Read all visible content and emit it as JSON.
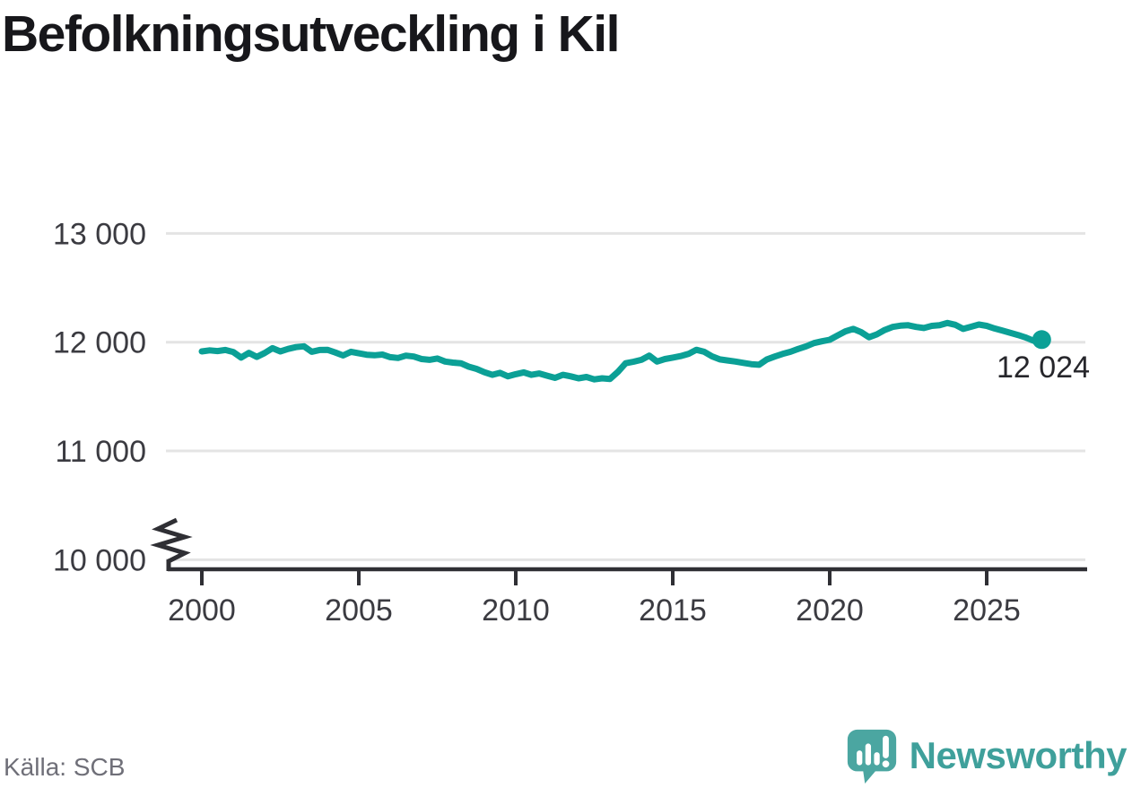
{
  "title": "Befolkningsutveckling i Kil",
  "source": "Källa: SCB",
  "branding": {
    "logo_text": "Newsworthy",
    "logo_icon": "newsworthy-speech-bubble-barchart-icon"
  },
  "colors": {
    "line": "#0BA096",
    "grid": "#e4e4e4",
    "axis": "#2f2f34",
    "tick_label": "#3b3b41",
    "title": "#17171b",
    "end_label": "#26262b",
    "source": "#6f6f78",
    "logo": "#4BA6A1",
    "logo_text": "#3FA09B"
  },
  "chart_data": {
    "type": "line",
    "title": "Befolkningsutveckling i Kil",
    "xlabel": "",
    "ylabel": "",
    "x_tick_labels": [
      "2000",
      "2005",
      "2010",
      "2015",
      "2020",
      "2025"
    ],
    "x_tick_values": [
      2000,
      2005,
      2010,
      2015,
      2020,
      2025
    ],
    "y_tick_labels": [
      "13 000",
      "12 000",
      "11 000",
      "10 000"
    ],
    "y_tick_values": [
      13000,
      12000,
      11000,
      10000
    ],
    "ylim": [
      10000,
      13000
    ],
    "axis_break_at_origin": true,
    "grid": "horizontal",
    "end_label": "12 024",
    "end_value": 12024,
    "series": [
      {
        "name": "Befolkning i Kil",
        "points": [
          [
            2000,
            11915
          ],
          [
            2000.25,
            11925
          ],
          [
            2000.5,
            11918
          ],
          [
            2000.75,
            11928
          ],
          [
            2001,
            11910
          ],
          [
            2001.25,
            11858
          ],
          [
            2001.5,
            11902
          ],
          [
            2001.75,
            11865
          ],
          [
            2002,
            11900
          ],
          [
            2002.25,
            11945
          ],
          [
            2002.5,
            11915
          ],
          [
            2002.75,
            11938
          ],
          [
            2003,
            11955
          ],
          [
            2003.25,
            11962
          ],
          [
            2003.5,
            11912
          ],
          [
            2003.75,
            11928
          ],
          [
            2004,
            11930
          ],
          [
            2004.25,
            11905
          ],
          [
            2004.5,
            11878
          ],
          [
            2004.75,
            11912
          ],
          [
            2005,
            11898
          ],
          [
            2005.25,
            11885
          ],
          [
            2005.5,
            11880
          ],
          [
            2005.75,
            11886
          ],
          [
            2006,
            11862
          ],
          [
            2006.25,
            11855
          ],
          [
            2006.5,
            11876
          ],
          [
            2006.75,
            11868
          ],
          [
            2007,
            11845
          ],
          [
            2007.25,
            11838
          ],
          [
            2007.5,
            11850
          ],
          [
            2007.75,
            11822
          ],
          [
            2008,
            11812
          ],
          [
            2008.25,
            11806
          ],
          [
            2008.5,
            11775
          ],
          [
            2008.75,
            11754
          ],
          [
            2009,
            11724
          ],
          [
            2009.25,
            11700
          ],
          [
            2009.5,
            11718
          ],
          [
            2009.75,
            11686
          ],
          [
            2010,
            11706
          ],
          [
            2010.25,
            11722
          ],
          [
            2010.5,
            11700
          ],
          [
            2010.75,
            11712
          ],
          [
            2011,
            11692
          ],
          [
            2011.25,
            11672
          ],
          [
            2011.5,
            11700
          ],
          [
            2011.75,
            11686
          ],
          [
            2012,
            11668
          ],
          [
            2012.25,
            11680
          ],
          [
            2012.5,
            11658
          ],
          [
            2012.75,
            11668
          ],
          [
            2013,
            11662
          ],
          [
            2013.25,
            11726
          ],
          [
            2013.5,
            11806
          ],
          [
            2013.75,
            11820
          ],
          [
            2014,
            11838
          ],
          [
            2014.25,
            11876
          ],
          [
            2014.5,
            11822
          ],
          [
            2014.75,
            11845
          ],
          [
            2015,
            11858
          ],
          [
            2015.25,
            11872
          ],
          [
            2015.5,
            11892
          ],
          [
            2015.75,
            11930
          ],
          [
            2016,
            11912
          ],
          [
            2016.25,
            11870
          ],
          [
            2016.5,
            11842
          ],
          [
            2016.75,
            11832
          ],
          [
            2017,
            11822
          ],
          [
            2017.25,
            11810
          ],
          [
            2017.5,
            11798
          ],
          [
            2017.75,
            11792
          ],
          [
            2018,
            11842
          ],
          [
            2018.25,
            11868
          ],
          [
            2018.5,
            11892
          ],
          [
            2018.75,
            11912
          ],
          [
            2019,
            11938
          ],
          [
            2019.25,
            11962
          ],
          [
            2019.5,
            11992
          ],
          [
            2019.75,
            12008
          ],
          [
            2020,
            12022
          ],
          [
            2020.25,
            12062
          ],
          [
            2020.5,
            12100
          ],
          [
            2020.75,
            12122
          ],
          [
            2021,
            12092
          ],
          [
            2021.25,
            12045
          ],
          [
            2021.5,
            12072
          ],
          [
            2021.75,
            12112
          ],
          [
            2022,
            12140
          ],
          [
            2022.25,
            12152
          ],
          [
            2022.5,
            12156
          ],
          [
            2022.75,
            12140
          ],
          [
            2023,
            12130
          ],
          [
            2023.25,
            12150
          ],
          [
            2023.5,
            12156
          ],
          [
            2023.75,
            12176
          ],
          [
            2024,
            12160
          ],
          [
            2024.25,
            12122
          ],
          [
            2024.5,
            12142
          ],
          [
            2024.75,
            12162
          ],
          [
            2025,
            12150
          ],
          [
            2025.25,
            12126
          ],
          [
            2025.5,
            12106
          ],
          [
            2025.75,
            12086
          ],
          [
            2026,
            12066
          ],
          [
            2026.25,
            12042
          ],
          [
            2026.5,
            12012
          ],
          [
            2026.75,
            12024
          ]
        ]
      }
    ]
  }
}
